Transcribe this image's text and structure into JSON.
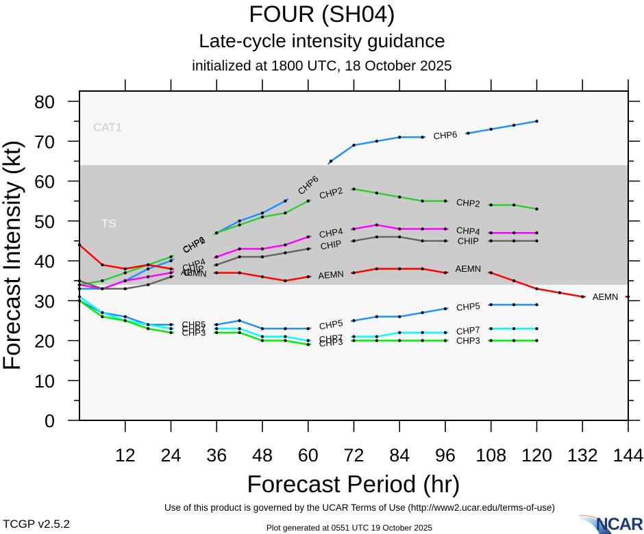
{
  "header": {
    "title": "FOUR (SH04)",
    "subtitle": "Late-cycle intensity guidance",
    "init": "initialized at 1800 UTC, 18 October 2025"
  },
  "footer": {
    "terms": "Use of this product is governed by the UCAR Terms of Use (http://www2.ucar.edu/terms-of-use)",
    "version": "TCGP v2.5.2",
    "generated": "Plot generated at 0551 UTC   19 October 2025",
    "logo_text": "NCAR"
  },
  "chart_data": {
    "type": "line",
    "title": "Late-cycle intensity guidance",
    "xlabel": "Forecast Period (hr)",
    "ylabel": "Forecast Intensity (kt)",
    "xlim": [
      0,
      144
    ],
    "ylim": [
      0,
      82.7
    ],
    "xticks": [
      12,
      24,
      36,
      48,
      60,
      72,
      84,
      96,
      108,
      120,
      132,
      144
    ],
    "yticks": [
      0,
      10,
      20,
      30,
      40,
      50,
      60,
      70,
      80
    ],
    "grid": false,
    "bands": [
      {
        "name": "TS",
        "from": 34,
        "to": 64,
        "color": "#cccccc"
      },
      {
        "name": "CAT1",
        "from": 64,
        "to": 82.7,
        "color": "#f8f8f8"
      },
      {
        "name": "",
        "from": 0,
        "to": 34,
        "color": "#f8f8f8"
      }
    ],
    "x": [
      0,
      6,
      12,
      18,
      24,
      30,
      36,
      42,
      48,
      54,
      60,
      66,
      72,
      78,
      84,
      90,
      96,
      102,
      108,
      114,
      120,
      126,
      132,
      138,
      144
    ],
    "series": [
      {
        "name": "CHP6",
        "color": "#1e90ff",
        "values": [
          33,
          33,
          35,
          38,
          40,
          44,
          47,
          50,
          52,
          55,
          59,
          65,
          69,
          70,
          71,
          71,
          71.5,
          72,
          73,
          74,
          75,
          null,
          null,
          null,
          null
        ],
        "label_hours": [
          30,
          60,
          96
        ]
      },
      {
        "name": "CHP2",
        "color": "#33cc33",
        "values": [
          34,
          35,
          37,
          39,
          41,
          44,
          47,
          49,
          51,
          52,
          55,
          57,
          58,
          57,
          56,
          55,
          55,
          54.5,
          54,
          54,
          53,
          null,
          null,
          null,
          null
        ],
        "label_hours": [
          30,
          66,
          102
        ]
      },
      {
        "name": "CHP4",
        "color": "#ff00ff",
        "values": [
          34,
          33,
          35,
          36,
          37,
          39,
          41,
          43,
          43,
          44,
          46,
          47,
          48,
          49,
          48,
          48,
          48,
          47.5,
          47,
          47,
          47,
          null,
          null,
          null,
          null
        ],
        "label_hours": [
          30,
          66,
          102
        ]
      },
      {
        "name": "CHIP",
        "color": "#666666",
        "values": [
          35,
          33,
          33,
          34,
          36,
          37.5,
          39,
          41,
          41,
          42,
          43,
          44,
          45,
          46,
          46,
          45,
          45,
          45,
          45,
          45,
          45,
          null,
          null,
          null,
          null
        ],
        "label_hours": [
          30,
          66,
          102
        ]
      },
      {
        "name": "AEMN",
        "color": "#ff0000",
        "values": [
          44,
          39,
          38,
          39,
          38,
          37,
          37,
          37,
          36,
          35,
          36,
          36.5,
          37,
          38,
          38,
          38,
          37,
          38,
          37,
          35,
          33,
          32,
          31,
          31,
          31
        ],
        "label_hours": [
          30,
          66,
          102,
          138
        ]
      },
      {
        "name": "CHP5",
        "color": "#1e90ff",
        "values": [
          30,
          27,
          26,
          24,
          24,
          24,
          24,
          25,
          23,
          23,
          23,
          24,
          25,
          26,
          26,
          27,
          28,
          28.5,
          29,
          29,
          29,
          null,
          null,
          null,
          null
        ],
        "label_hours": [
          30,
          66,
          102
        ]
      },
      {
        "name": "CHP7",
        "color": "#00ffff",
        "values": [
          31,
          27,
          25,
          24,
          23,
          23,
          23,
          23,
          21,
          21,
          20,
          20.5,
          21,
          21,
          22,
          22,
          22,
          22.5,
          23,
          23,
          23,
          null,
          null,
          null,
          null
        ],
        "label_hours": [
          30,
          66,
          102
        ]
      },
      {
        "name": "CHP3",
        "color": "#00ee00",
        "values": [
          30,
          26,
          25,
          23,
          22,
          22,
          22,
          22,
          20,
          20,
          19,
          19.5,
          20,
          20,
          20,
          20,
          20,
          20,
          20,
          20,
          20,
          null,
          null,
          null,
          null
        ],
        "label_hours": [
          30,
          66,
          102
        ]
      }
    ]
  }
}
